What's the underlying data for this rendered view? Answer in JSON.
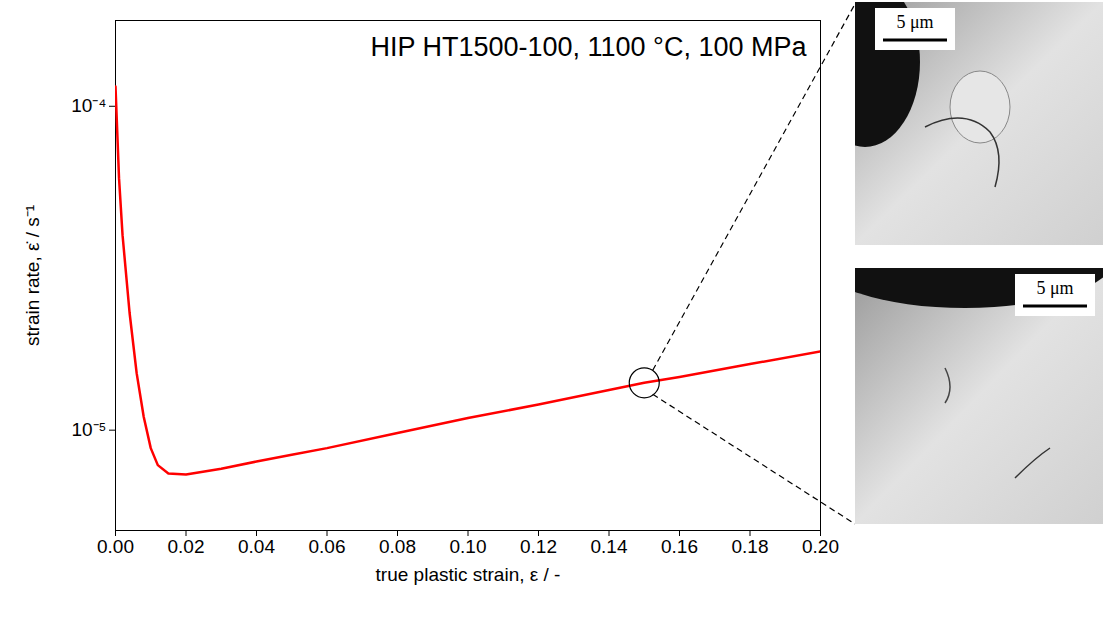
{
  "chart_data": {
    "type": "line",
    "title": "HIP HT1500-100, 1100 °C, 100 MPa",
    "x_label": "true plastic strain, ε / -",
    "y_label": "strain rate, ε̇ / s⁻¹",
    "log": "y",
    "grid": false,
    "series": [
      {
        "name": "HIP HT1500-100",
        "color": "#ff0000",
        "x": [
          0,
          0.001,
          0.002,
          0.004,
          0.006,
          0.008,
          0.01,
          0.012,
          0.015,
          0.02,
          0.03,
          0.04,
          0.05,
          0.06,
          0.08,
          0.1,
          0.12,
          0.14,
          0.15,
          0.16,
          0.18,
          0.2
        ],
        "values": [
          0.000115,
          6e-05,
          4e-05,
          2.3e-05,
          1.5e-05,
          1.1e-05,
          8.8e-06,
          7.8e-06,
          7.35e-06,
          7.3e-06,
          7.6e-06,
          8e-06,
          8.4e-06,
          8.8e-06,
          9.8e-06,
          1.09e-05,
          1.2e-05,
          1.33e-05,
          1.4e-05,
          1.46e-05,
          1.6e-05,
          1.75e-05
        ]
      }
    ],
    "xlim": [
      0,
      0.2
    ],
    "xticks": [
      {
        "value": 0,
        "label": "0.00"
      },
      {
        "value": 0.02,
        "label": "0.02"
      },
      {
        "value": 0.04,
        "label": "0.04"
      },
      {
        "value": 0.06,
        "label": "0.06"
      },
      {
        "value": 0.08,
        "label": "0.08"
      },
      {
        "value": 0.1,
        "label": "0.10"
      },
      {
        "value": 0.12,
        "label": "0.12"
      },
      {
        "value": 0.14,
        "label": "0.14"
      },
      {
        "value": 0.16,
        "label": "0.16"
      },
      {
        "value": 0.18,
        "label": "0.18"
      },
      {
        "value": 0.2,
        "label": "0.20"
      }
    ],
    "ylim": [
      4.9e-06,
      0.000184
    ],
    "yticks": [
      {
        "value": 1e-05,
        "label": "10⁻⁵"
      },
      {
        "value": 0.0001,
        "label": "10⁻⁴"
      }
    ],
    "annotation": {
      "x": 0.15,
      "y": 1.4e-05
    },
    "insets": [
      {
        "scale_bar": "5 μm"
      },
      {
        "scale_bar": "5 μm"
      }
    ]
  }
}
